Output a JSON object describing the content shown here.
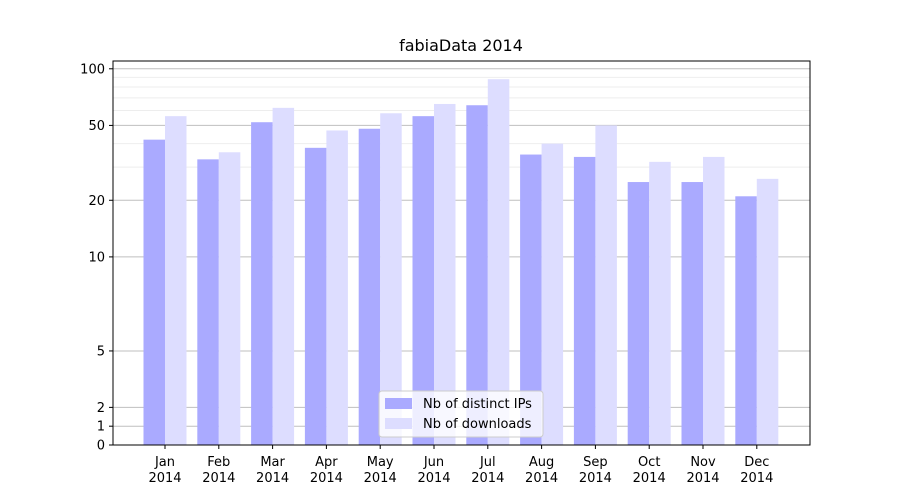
{
  "chart_data": {
    "type": "bar",
    "title": "fabiaData 2014",
    "xlabel": "",
    "ylabel": "",
    "yscale": "symlog",
    "ylim": [
      0,
      110
    ],
    "yticks": [
      0,
      1,
      2,
      5,
      10,
      20,
      50,
      100
    ],
    "grid": "y",
    "legend_position": "bottom-center",
    "categories": [
      "Jan\n2014",
      "Feb\n2014",
      "Mar\n2014",
      "Apr\n2014",
      "May\n2014",
      "Jun\n2014",
      "Jul\n2014",
      "Aug\n2014",
      "Sep\n2014",
      "Oct\n2014",
      "Nov\n2014",
      "Dec\n2014"
    ],
    "series": [
      {
        "name": "Nb of distinct IPs",
        "color": "#aaaaff",
        "values": [
          42,
          33,
          52,
          38,
          48,
          56,
          64,
          35,
          34,
          25,
          25,
          21
        ]
      },
      {
        "name": "Nb of downloads",
        "color": "#ddddff",
        "values": [
          56,
          36,
          62,
          47,
          58,
          65,
          88,
          40,
          50,
          32,
          34,
          26
        ]
      }
    ]
  }
}
